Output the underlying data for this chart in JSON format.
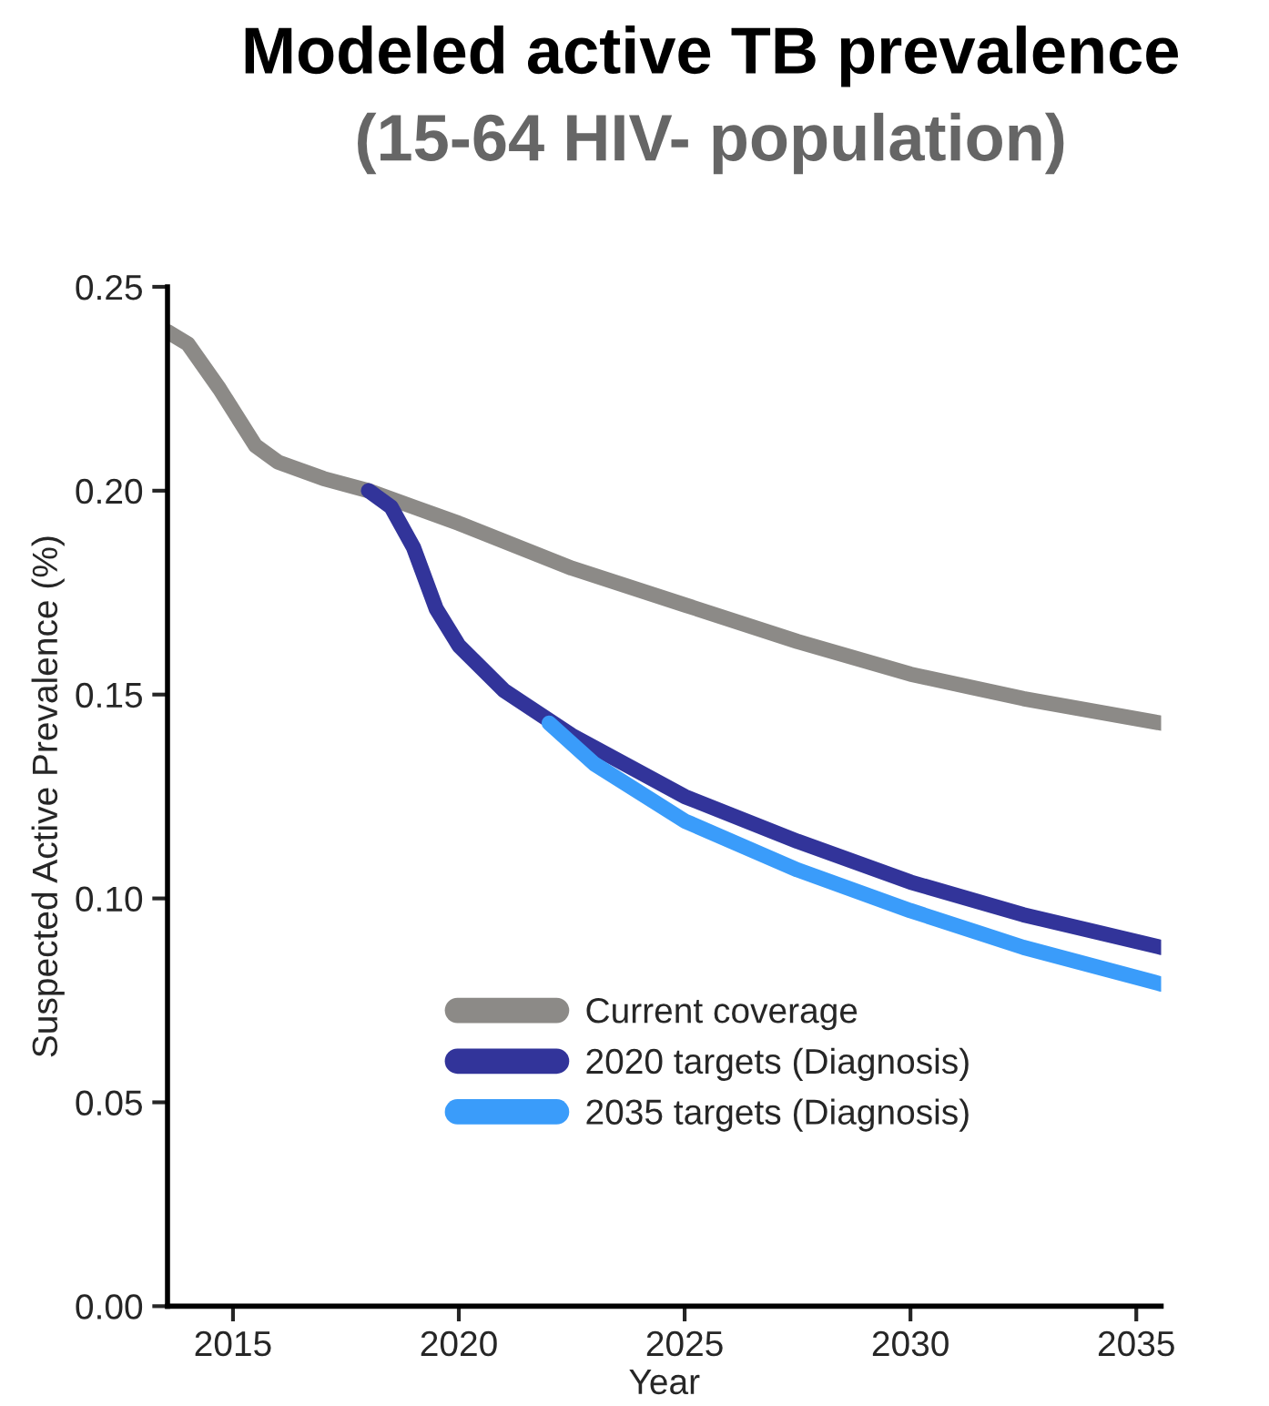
{
  "chart_data": {
    "type": "line",
    "title": "Modeled active TB prevalence",
    "subtitle": "(15-64 HIV- population)",
    "xlabel": "Year",
    "ylabel": "Suspected Active Prevalence (%)",
    "xlim": [
      2013.55,
      2035.55
    ],
    "xticks": [
      2015,
      2020,
      2025,
      2030,
      2035
    ],
    "ylim": [
      0,
      0.25
    ],
    "yticks": [
      {
        "value": 0,
        "label": "0.00"
      },
      0.05,
      {
        "value": 0.1,
        "label": "0.10"
      },
      0.15,
      {
        "value": 0.2,
        "label": "0.20"
      },
      0.25
    ],
    "grid": false,
    "legend": "bottom",
    "marker": "none",
    "line_style": "solid",
    "series": [
      {
        "name": "Current coverage",
        "color": "#8c8a87",
        "x": [
          2013.55,
          2014,
          2014.7,
          2015.5,
          2016,
          2017,
          2018,
          2019,
          2020,
          2022.5,
          2025,
          2027.5,
          2030,
          2032.5,
          2035.55
        ],
        "values": [
          0.239,
          0.236,
          0.225,
          0.211,
          0.207,
          0.203,
          0.2,
          0.196,
          0.192,
          0.181,
          0.172,
          0.163,
          0.155,
          0.149,
          0.143
        ]
      },
      {
        "name": "2020 targets (Diagnosis)",
        "color": "#32349a",
        "x": [
          2018,
          2018.5,
          2019,
          2019.5,
          2020,
          2021,
          2022.5,
          2025,
          2027.5,
          2030,
          2032.5,
          2035.55
        ],
        "values": [
          0.2,
          0.196,
          0.186,
          0.171,
          0.162,
          0.151,
          0.14,
          0.125,
          0.114,
          0.104,
          0.096,
          0.088
        ]
      },
      {
        "name": "2035 targets (Diagnosis)",
        "color": "#3a9cfa",
        "x": [
          2022,
          2023,
          2025,
          2027.5,
          2030,
          2032.5,
          2035.55
        ],
        "values": [
          0.143,
          0.133,
          0.119,
          0.107,
          0.097,
          0.088,
          0.079
        ]
      }
    ]
  }
}
